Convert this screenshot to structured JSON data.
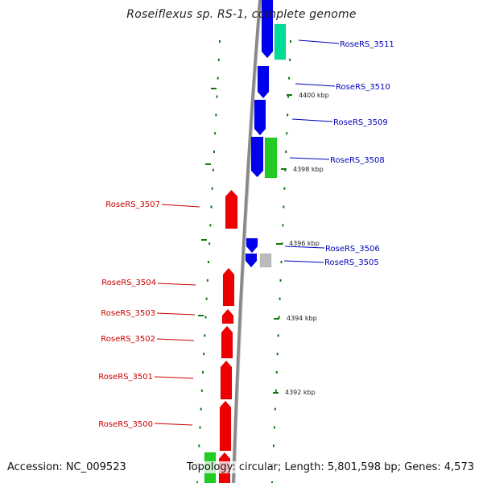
{
  "title": "Roseiflexus sp. RS-1, complete genome",
  "footer": {
    "accession": "Accession: NC_009523",
    "summary": "Topology: circular; Length: 5,801,598 bp; Genes: 4,573"
  },
  "colors": {
    "reverse_label": "#cc0000",
    "forward_label": "#0000bb",
    "cds_reverse": "#ee0000",
    "cds_forward": "#0000ee",
    "teal_feature": "#00dd99",
    "green_feature": "#22cc22",
    "grey_feature": "#bbbbbb",
    "tick": "#117711",
    "backbone": "#888888"
  },
  "gene_labels": [
    {
      "name": "RoseRS_3511",
      "side": "right"
    },
    {
      "name": "RoseRS_3510",
      "side": "right"
    },
    {
      "name": "RoseRS_3509",
      "side": "right"
    },
    {
      "name": "RoseRS_3508",
      "side": "right"
    },
    {
      "name": "RoseRS_3507",
      "side": "left"
    },
    {
      "name": "RoseRS_3506",
      "side": "right"
    },
    {
      "name": "RoseRS_3505",
      "side": "right"
    },
    {
      "name": "RoseRS_3504",
      "side": "left"
    },
    {
      "name": "RoseRS_3503",
      "side": "left"
    },
    {
      "name": "RoseRS_3502",
      "side": "left"
    },
    {
      "name": "RoseRS_3501",
      "side": "left"
    },
    {
      "name": "RoseRS_3500",
      "side": "left"
    }
  ],
  "kbp_labels": [
    "4400 kbp",
    "4398 kbp",
    "4396 kbp",
    "4394 kbp",
    "4392 kbp"
  ]
}
